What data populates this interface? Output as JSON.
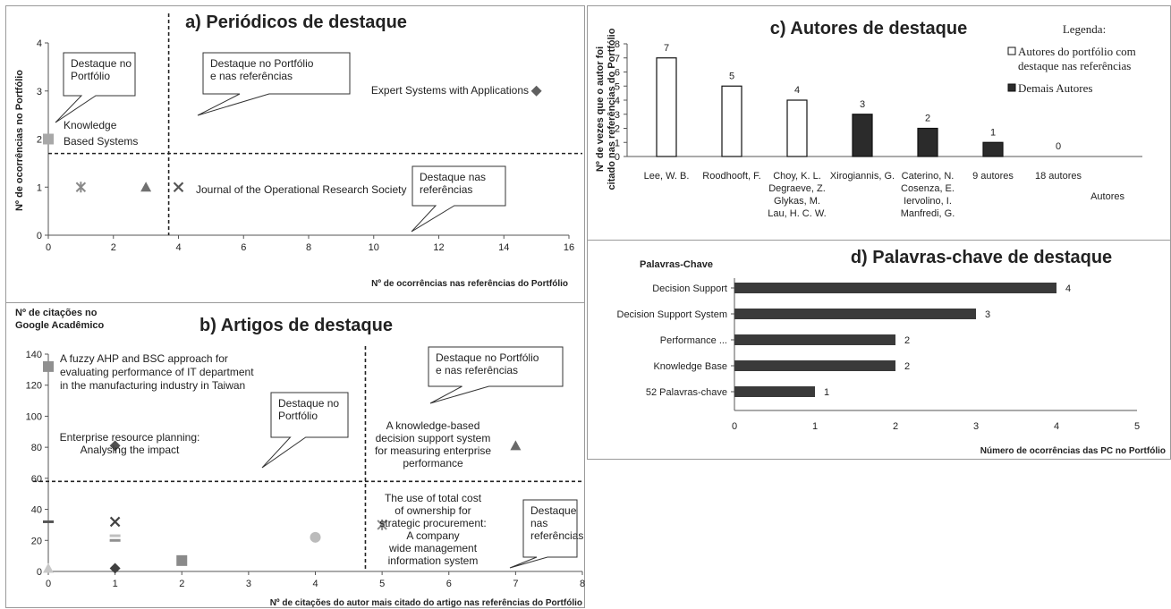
{
  "chart_data": [
    {
      "id": "a",
      "type": "scatter",
      "title": "a) Periódicos de destaque",
      "xlabel": "Nº de ocorrências nas referências do Portfólio",
      "ylabel": "Nº de ocorrências  no Portfólio",
      "xlim": [
        0,
        16
      ],
      "ylim": [
        0,
        4
      ],
      "xticks": [
        0,
        2,
        4,
        6,
        8,
        10,
        12,
        14,
        16
      ],
      "yticks": [
        0,
        1,
        2,
        3,
        4
      ],
      "points": [
        {
          "x": 0,
          "y": 2,
          "marker": "square",
          "color": "#a8a8a8",
          "label": "Knowledge\nBased Systems"
        },
        {
          "x": 1,
          "y": 1,
          "marker": "star",
          "color": "#8a8a8a",
          "label": ""
        },
        {
          "x": 3,
          "y": 1,
          "marker": "triangle",
          "color": "#707070",
          "label": ""
        },
        {
          "x": 4,
          "y": 1,
          "marker": "x",
          "color": "#555555",
          "label": "Journal of the Operational Research Society"
        },
        {
          "x": 15,
          "y": 3,
          "marker": "diamond",
          "color": "#606060",
          "label": "Expert Systems with Applications"
        }
      ],
      "thresholds": {
        "x": 3.7,
        "y": 1.7
      },
      "callouts": [
        {
          "text": "Destaque no\nPortfólio"
        },
        {
          "text": "Destaque no Portfólio\ne nas referências"
        },
        {
          "text": "Destaque nas\nreferências"
        }
      ]
    },
    {
      "id": "b",
      "type": "scatter",
      "title": "b) Artigos de destaque",
      "xlabel": "Nº de citações do autor mais citado do artigo nas referências do Portfólio",
      "ylabel": "Nº de citações no\nGoogle Acadêmico",
      "xlim": [
        0,
        8
      ],
      "ylim": [
        0,
        140
      ],
      "xticks": [
        0,
        1,
        2,
        3,
        4,
        5,
        6,
        7,
        8
      ],
      "yticks": [
        0,
        20,
        40,
        60,
        80,
        100,
        120,
        140
      ],
      "points": [
        {
          "x": 0,
          "y": 132,
          "marker": "square",
          "color": "#909090"
        },
        {
          "x": 0,
          "y": 32,
          "marker": "dash",
          "color": "#555555"
        },
        {
          "x": 0,
          "y": 2,
          "marker": "triangle",
          "color": "#c8c8c8"
        },
        {
          "x": 1,
          "y": 81,
          "marker": "diamond",
          "color": "#505050"
        },
        {
          "x": 1,
          "y": 32,
          "marker": "x",
          "color": "#444444"
        },
        {
          "x": 1,
          "y": 23,
          "marker": "dash",
          "color": "#c0c0c0"
        },
        {
          "x": 1,
          "y": 20,
          "marker": "dash",
          "color": "#909090"
        },
        {
          "x": 1,
          "y": 2,
          "marker": "diamond",
          "color": "#404040"
        },
        {
          "x": 2,
          "y": 7,
          "marker": "square",
          "color": "#8a8a8a"
        },
        {
          "x": 4,
          "y": 22,
          "marker": "circle",
          "color": "#bbbbbb"
        },
        {
          "x": 5,
          "y": 30,
          "marker": "star",
          "color": "#888888"
        },
        {
          "x": 7,
          "y": 81,
          "marker": "triangle",
          "color": "#6a6a6a"
        }
      ],
      "annotations": [
        {
          "text": "A fuzzy AHP and BSC approach for\nevaluating performance of IT department\nin the manufacturing industry in Taiwan"
        },
        {
          "text": "Enterprise resource planning:\nAnalysing the impact"
        },
        {
          "text": "A knowledge-based\ndecision support system\nfor measuring enterprise\nperformance"
        },
        {
          "text": "The use of total cost\nof ownership for\nstrategic procurement:\nA company\nwide management\ninformation system"
        }
      ],
      "thresholds": {
        "x": 4.75,
        "y": 58
      },
      "callouts": [
        {
          "text": "Destaque no\nPortfólio"
        },
        {
          "text": "Destaque no Portfólio\ne nas referências"
        },
        {
          "text": "Destaque\nnas\nreferências"
        }
      ]
    },
    {
      "id": "c",
      "type": "bar",
      "title": "c) Autores de destaque",
      "ylabel": "Nº de vezes que o autor foi\ncitado nas referências do Portfólio",
      "xlabel": "Autores",
      "ylim": [
        0,
        8
      ],
      "yticks": [
        0,
        1,
        2,
        3,
        4,
        5,
        6,
        7,
        8
      ],
      "categories": [
        "Lee, W. B.",
        "Roodhooft, F.",
        "Choy, K. L.\nDegraeve, Z.\nGlykas, M.\nLau, H. C. W.",
        "Xirogiannis, G.",
        "Caterino, N.\nCosenza, E.\nIervolino, I.\nManfredi, G.",
        "9 autores",
        "18 autores"
      ],
      "values": [
        7,
        5,
        4,
        3,
        2,
        1,
        0
      ],
      "groups": [
        "portfolio",
        "portfolio",
        "portfolio",
        "demais",
        "demais",
        "demais",
        "demais"
      ],
      "legend": {
        "title": "Legenda:",
        "items": [
          {
            "key": "portfolio",
            "label": "Autores do portfólio com\ndestaque nas referências",
            "color": "#ffffff"
          },
          {
            "key": "demais",
            "label": "Demais Autores",
            "color": "#2b2b2b"
          }
        ]
      }
    },
    {
      "id": "d",
      "type": "bar",
      "orientation": "horizontal",
      "title": "d) Palavras-chave de destaque",
      "ylabel": "Palavras-Chave",
      "xlabel": "Número de ocorrências das PC no Portfólio",
      "xlim": [
        0,
        5
      ],
      "xticks": [
        0,
        1,
        2,
        3,
        4,
        5
      ],
      "categories": [
        "Decision Support",
        "Decision Support System",
        "Performance ...",
        "Knowledge Base",
        "52 Palavras-chave"
      ],
      "values": [
        4,
        3,
        2,
        2,
        1
      ],
      "color": "#3a3a3a"
    }
  ]
}
